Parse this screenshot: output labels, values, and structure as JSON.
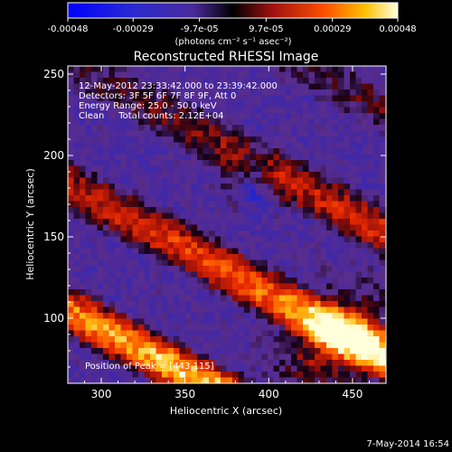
{
  "chart_data": {
    "type": "heatmap",
    "title": "Reconstructed RHESSI Image",
    "xlabel": "Heliocentric X (arcsec)",
    "ylabel": "Heliocentric Y (arcsec)",
    "xlim": [
      280,
      470
    ],
    "ylim": [
      60,
      255
    ],
    "x_ticks": [
      "300",
      "350",
      "400",
      "450"
    ],
    "y_ticks": [
      "100",
      "150",
      "200",
      "250"
    ],
    "x_tick_values": [
      300,
      350,
      400,
      450
    ],
    "y_tick_values": [
      100,
      150,
      200,
      250
    ],
    "colorbar": {
      "min": -0.00048,
      "max": 0.00048,
      "tick_labels": [
        "-0.00048",
        "-0.00029",
        "-9.7e-05",
        "9.7e-05",
        "0.00029",
        "0.00048"
      ],
      "tick_values": [
        -0.00048,
        -0.00029,
        -9.7e-05,
        9.7e-05,
        0.00029,
        0.00048
      ],
      "unit_label": "(photons cm⁻² s⁻¹ asec⁻²)"
    },
    "annotations": [
      "12-May-2012 23:33:42.000 to 23:39:42.000",
      "Detectors: 3F 5F 6F 7F 8F 9F, Att 0",
      "Energy Range: 25.0 - 50.0 keV",
      "Clean     Total counts: 2.12E+04"
    ],
    "peak_label": "Position of Peak = [443,115]",
    "peak_position": [
      443,
      115
    ],
    "grid": false
  },
  "footer_date": "7-May-2014 16:54"
}
